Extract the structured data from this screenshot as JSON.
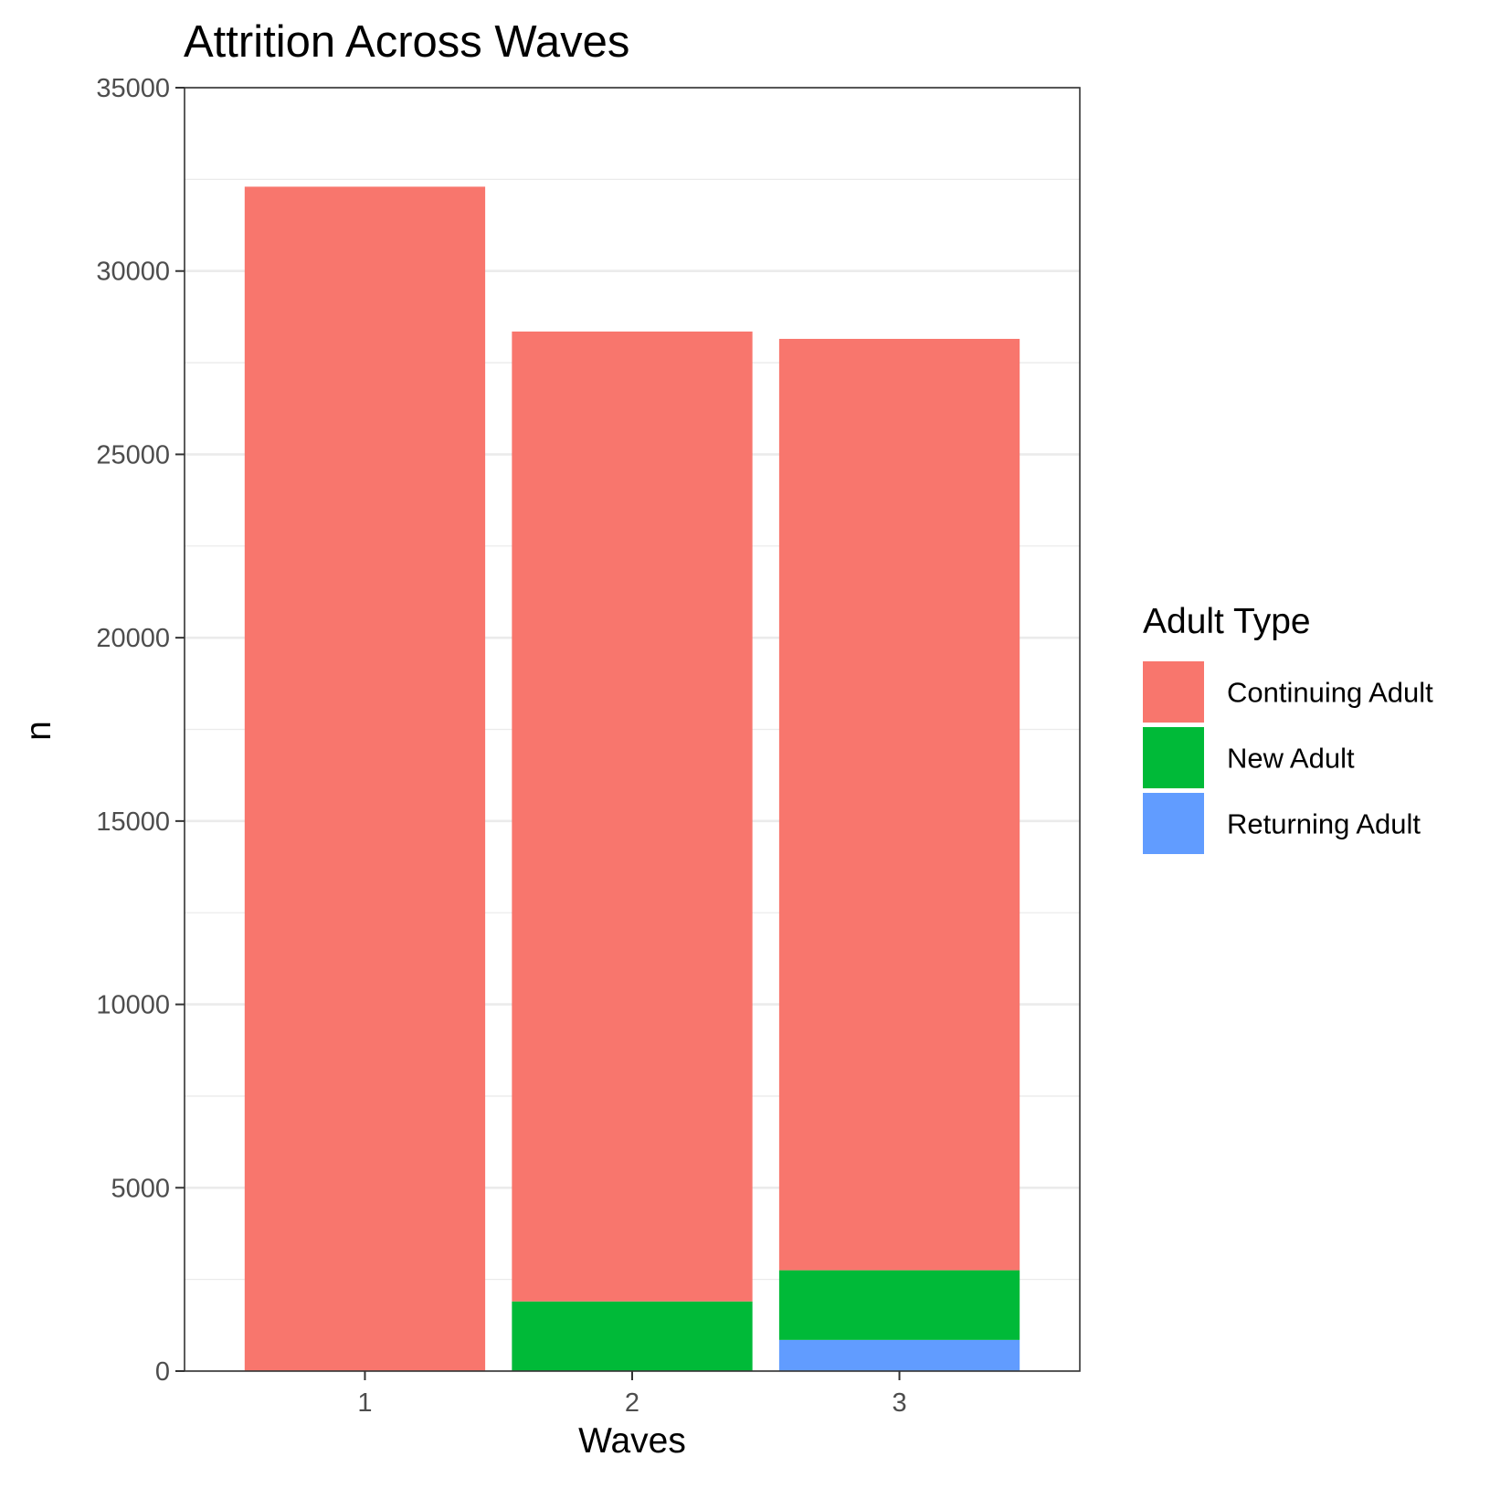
{
  "chart_data": {
    "type": "bar",
    "stacked": true,
    "title": "Attrition Across Waves",
    "xlabel": "Waves",
    "ylabel": "n",
    "categories": [
      "1",
      "2",
      "3"
    ],
    "series": [
      {
        "name": "Continuing Adult",
        "color": "#f8766d",
        "values": [
          32300,
          26450,
          25400
        ]
      },
      {
        "name": "New Adult",
        "color": "#00ba38",
        "values": [
          0,
          1900,
          1900
        ]
      },
      {
        "name": "Returning Adult",
        "color": "#619cff",
        "values": [
          0,
          0,
          850
        ]
      }
    ],
    "stack_order_bottom_to_top": [
      "Returning Adult",
      "New Adult",
      "Continuing Adult"
    ],
    "ylim": [
      0,
      35000
    ],
    "yticks": [
      0,
      5000,
      10000,
      15000,
      20000,
      25000,
      30000,
      35000
    ],
    "grid": true,
    "legend": {
      "title": "Adult Type",
      "placement": "right"
    }
  }
}
